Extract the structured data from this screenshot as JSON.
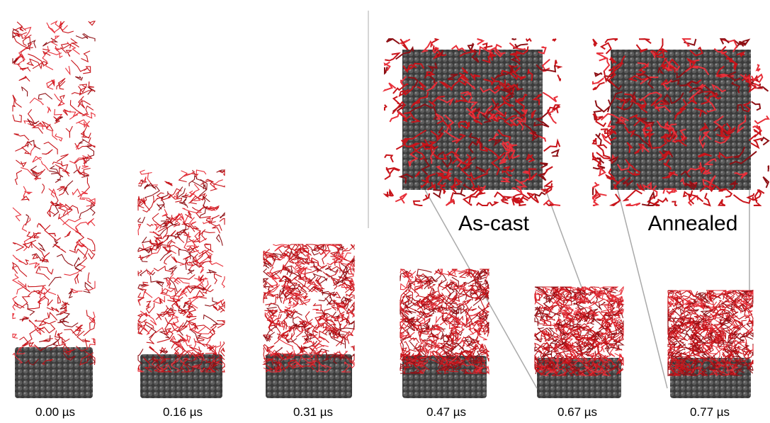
{
  "panels": [
    {
      "label": "0.00 µs"
    },
    {
      "label": "0.16 µs"
    },
    {
      "label": "0.31 µs"
    },
    {
      "label": "0.47 µs"
    },
    {
      "label": "0.67 µs"
    },
    {
      "label": "0.77 µs"
    }
  ],
  "insets": [
    {
      "label": "As-cast"
    },
    {
      "label": "Annealed"
    }
  ]
}
